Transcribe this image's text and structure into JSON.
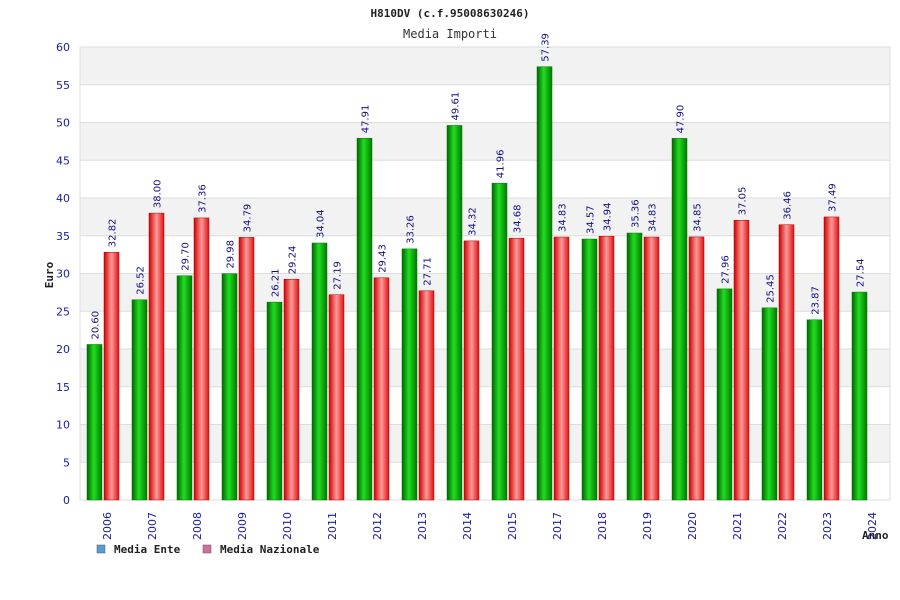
{
  "chart_data": {
    "type": "bar",
    "title": "H810DV (c.f.95008630246)",
    "subtitle": "Media Importi",
    "ylabel": "Euro",
    "xlabel": "Anno",
    "ylim": [
      0,
      60
    ],
    "ytick_step": 5,
    "yticks": [
      "0",
      "5",
      "10",
      "15",
      "20",
      "25",
      "30",
      "35",
      "40",
      "45",
      "50",
      "55",
      "60"
    ],
    "categories": [
      "2006",
      "2007",
      "2008",
      "2009",
      "2010",
      "2011",
      "2012",
      "2013",
      "2014",
      "2015",
      "2017",
      "2018",
      "2019",
      "2020",
      "2021",
      "2022",
      "2023",
      "2024"
    ],
    "series": [
      {
        "name": "Media Ente",
        "color": "#00aa00",
        "legend_color": "#5b9bd5",
        "values": [
          20.6,
          26.52,
          29.7,
          29.98,
          26.21,
          34.04,
          47.91,
          33.26,
          49.61,
          41.96,
          57.39,
          34.57,
          35.36,
          47.9,
          27.96,
          25.45,
          23.87,
          27.54
        ],
        "labels": [
          "20.60",
          "26.52",
          "29.70",
          "29.98",
          "26.21",
          "34.04",
          "47.91",
          "33.26",
          "49.61",
          "41.96",
          "57.39",
          "34.57",
          "35.36",
          "47.90",
          "27.96",
          "25.45",
          "23.87",
          "27.54"
        ]
      },
      {
        "name": "Media Nazionale",
        "color": "#ee1111",
        "legend_color": "#d36fa0",
        "values": [
          32.82,
          38.0,
          37.36,
          34.79,
          29.24,
          27.19,
          29.43,
          27.71,
          34.32,
          34.68,
          34.83,
          34.94,
          34.83,
          34.85,
          37.05,
          36.46,
          37.49,
          null
        ],
        "labels": [
          "32.82",
          "38.00",
          "37.36",
          "34.79",
          "29.24",
          "27.19",
          "29.43",
          "27.71",
          "34.32",
          "34.68",
          "34.83",
          "34.94",
          "34.83",
          "34.85",
          "37.05",
          "36.46",
          "37.49",
          null
        ]
      }
    ],
    "grid": true,
    "legend_position": "bottom-left"
  }
}
